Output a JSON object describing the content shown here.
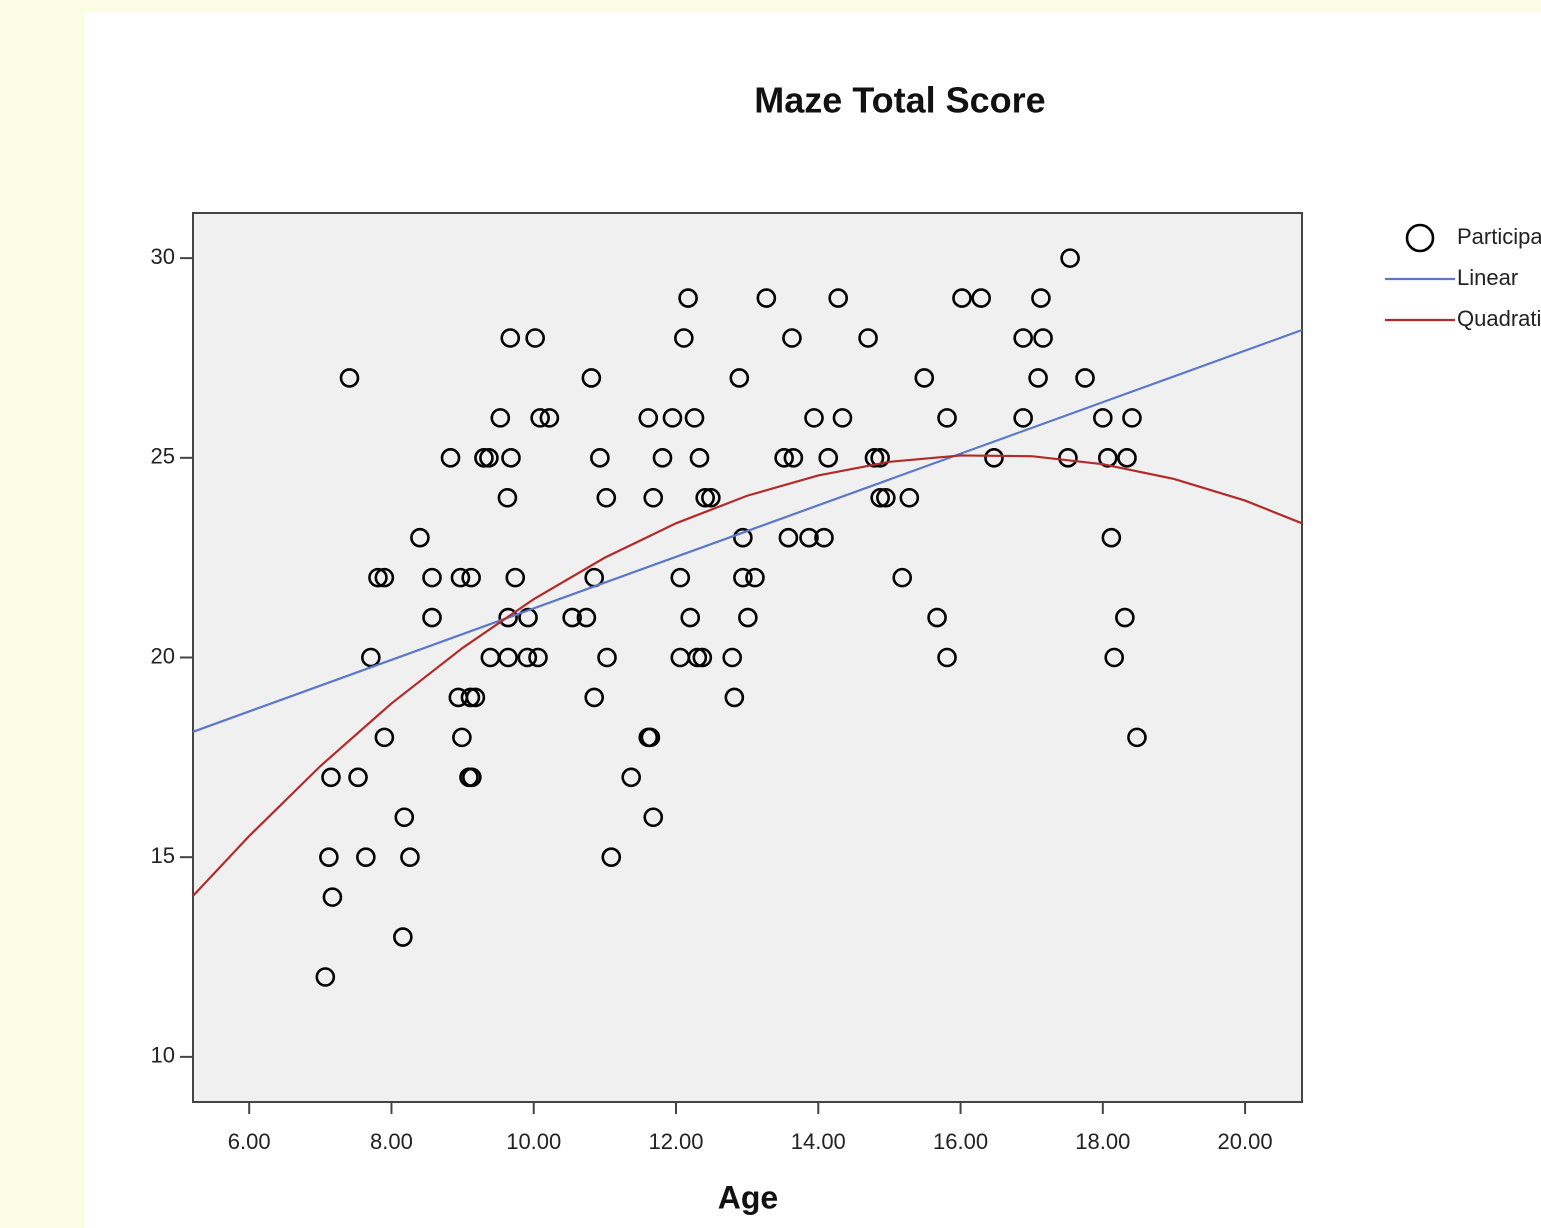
{
  "chart_data": {
    "type": "scatter",
    "title": "Maze Total Score",
    "x_label": "Age",
    "xlim": [
      5.21,
      20.8
    ],
    "ylim": [
      8.87,
      31.13
    ],
    "xticks": [
      {
        "value": 6,
        "label": "6.00"
      },
      {
        "value": 8,
        "label": "8.00"
      },
      {
        "value": 10,
        "label": "10.00"
      },
      {
        "value": 12,
        "label": "12.00"
      },
      {
        "value": 14,
        "label": "14.00"
      },
      {
        "value": 16,
        "label": "16.00"
      },
      {
        "value": 18,
        "label": "18.00"
      },
      {
        "value": 20,
        "label": "20.00"
      }
    ],
    "yticks": [
      10,
      15,
      20,
      25,
      30
    ],
    "series": [
      {
        "name": "Participants",
        "type": "scatter",
        "color": "#000000",
        "x": [
          17.54,
          12.17,
          13.27,
          14.28,
          16.02,
          16.29,
          17.13,
          9.67,
          10.02,
          12.11,
          13.63,
          14.7,
          16.88,
          17.16,
          7.41,
          10.81,
          12.89,
          15.49,
          17.09,
          17.75,
          9.53,
          10.09,
          10.22,
          11.61,
          11.95,
          12.26,
          13.94,
          14.34,
          15.81,
          16.88,
          18.0,
          18.41,
          8.83,
          9.3,
          9.37,
          9.68,
          10.93,
          11.81,
          12.33,
          13.52,
          13.65,
          14.14,
          14.79,
          14.87,
          16.47,
          17.51,
          18.07,
          18.34,
          9.63,
          11.02,
          11.68,
          12.41,
          12.49,
          14.87,
          14.95,
          15.28,
          8.4,
          12.94,
          13.58,
          13.87,
          14.08,
          18.12,
          7.81,
          7.9,
          8.57,
          8.97,
          9.12,
          9.74,
          10.85,
          12.06,
          12.94,
          13.11,
          15.18,
          8.57,
          9.64,
          9.92,
          10.54,
          10.74,
          12.2,
          13.01,
          15.67,
          18.31,
          7.71,
          9.39,
          9.64,
          9.91,
          10.06,
          11.03,
          12.06,
          12.3,
          12.37,
          12.79,
          15.81,
          18.16,
          8.94,
          9.11,
          9.18,
          10.85,
          12.82,
          7.9,
          8.99,
          11.61,
          11.64,
          18.48,
          7.15,
          7.53,
          9.09,
          9.13,
          11.37,
          8.18,
          11.68,
          7.12,
          7.64,
          8.26,
          11.09,
          7.17,
          8.16,
          7.07
        ],
        "values": [
          30,
          29,
          29,
          29,
          29,
          29,
          29,
          28,
          28,
          28,
          28,
          28,
          28,
          28,
          27,
          27,
          27,
          27,
          27,
          27,
          26,
          26,
          26,
          26,
          26,
          26,
          26,
          26,
          26,
          26,
          26,
          26,
          25,
          25,
          25,
          25,
          25,
          25,
          25,
          25,
          25,
          25,
          25,
          25,
          25,
          25,
          25,
          25,
          24,
          24,
          24,
          24,
          24,
          24,
          24,
          24,
          23,
          23,
          23,
          23,
          23,
          23,
          22,
          22,
          22,
          22,
          22,
          22,
          22,
          22,
          22,
          22,
          22,
          21,
          21,
          21,
          21,
          21,
          21,
          21,
          21,
          21,
          20,
          20,
          20,
          20,
          20,
          20,
          20,
          20,
          20,
          20,
          20,
          20,
          19,
          19,
          19,
          19,
          19,
          18,
          18,
          18,
          18,
          18,
          17,
          17,
          17,
          17,
          17,
          16,
          16,
          15,
          15,
          15,
          15,
          14,
          13,
          12
        ]
      },
      {
        "name": "Linear",
        "type": "line",
        "color": "#5b78c6",
        "x": [
          5.21,
          20.8
        ],
        "values": [
          18.14,
          28.2
        ]
      },
      {
        "name": "Quadratic",
        "type": "line",
        "color": "#b22b2b",
        "x": [
          5.21,
          6,
          7,
          8,
          9,
          10,
          11,
          12,
          13,
          14,
          15,
          16,
          17,
          18,
          19,
          20,
          20.8
        ],
        "values": [
          14.03,
          15.53,
          17.28,
          18.85,
          20.24,
          21.46,
          22.5,
          23.36,
          24.05,
          24.56,
          24.9,
          25.06,
          25.04,
          24.84,
          24.47,
          23.93,
          23.36
        ]
      }
    ]
  }
}
